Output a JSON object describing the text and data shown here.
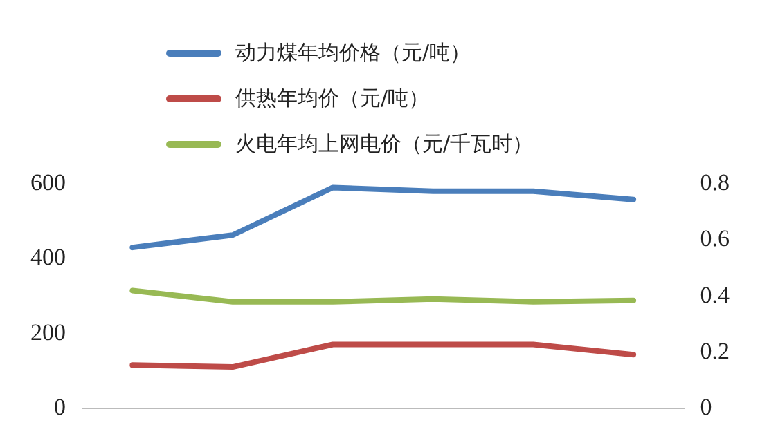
{
  "chart_data": {
    "type": "line",
    "categories": [
      null,
      null,
      null,
      null,
      null,
      null
    ],
    "series": [
      {
        "name": "动力煤年均价格（元/吨）",
        "color": "#4a7ebb",
        "values": [
          430,
          463,
          590,
          580,
          580,
          558
        ]
      },
      {
        "name": "供热年均价（元/吨）",
        "color": "#be4b48",
        "values": [
          116,
          111,
          171,
          171,
          171,
          144
        ]
      },
      {
        "name": "火电年均上网电价（元/千瓦时）",
        "color": "#98b954",
        "axis": "y2",
        "values": [
          0.42,
          0.38,
          0.38,
          0.39,
          0.38,
          0.385
        ]
      }
    ],
    "ylim": [
      0,
      600
    ],
    "yticks": [
      0,
      200,
      400,
      600
    ],
    "y2lim": [
      0,
      0.8
    ],
    "y2ticks": [
      0,
      0.2,
      0.4,
      0.6,
      0.8
    ],
    "grid": false,
    "legend": "top",
    "marker": "none",
    "line_style": "solid"
  }
}
